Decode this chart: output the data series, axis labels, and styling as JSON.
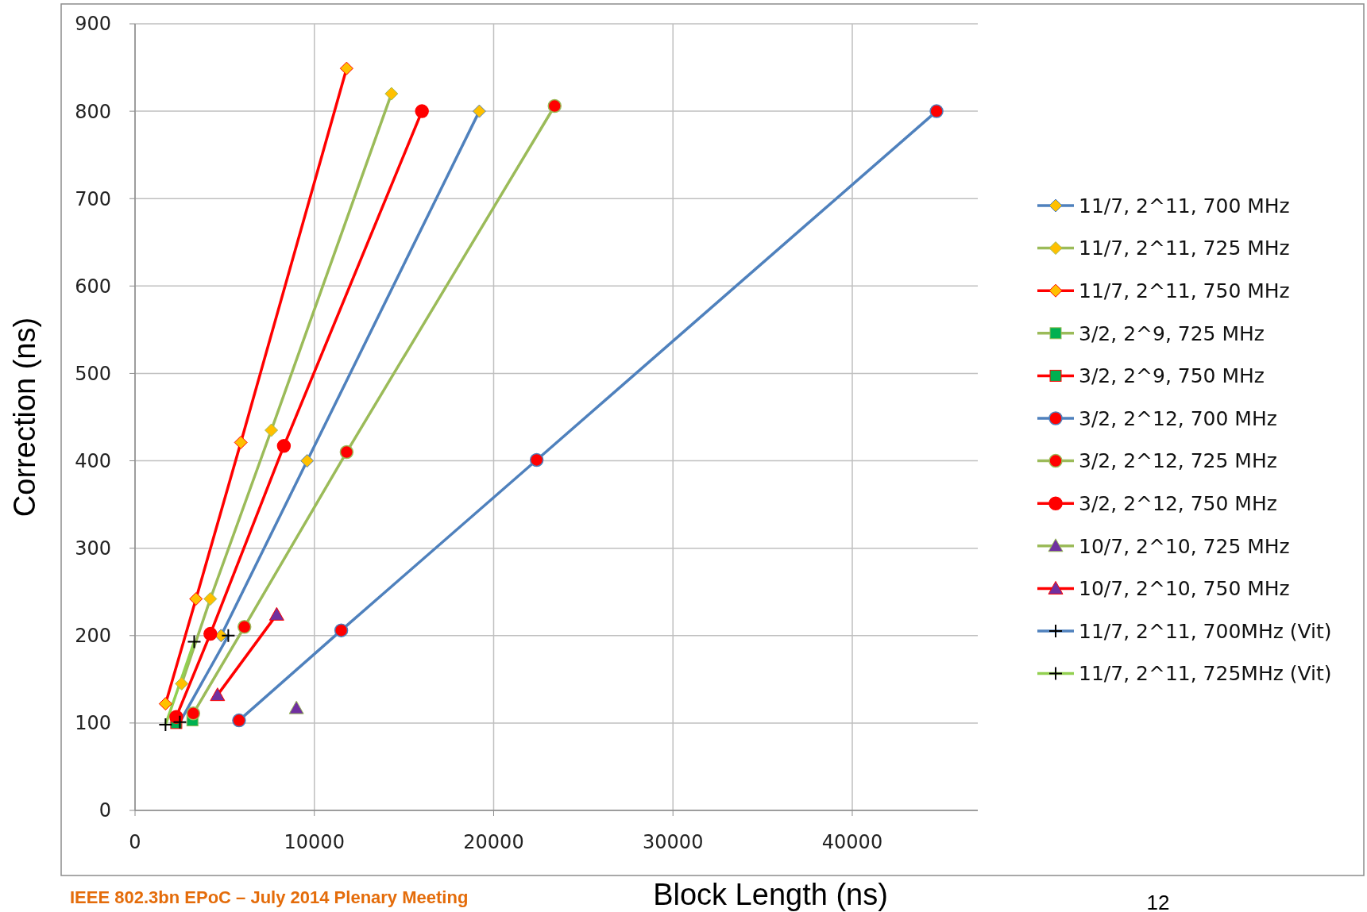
{
  "chart_data": {
    "type": "line",
    "xlabel": "Block Length (ns)",
    "ylabel": "Correction (ns)",
    "xlim": [
      0,
      47000
    ],
    "xticks": [
      0,
      10000,
      20000,
      30000,
      40000
    ],
    "ylim": [
      0,
      900
    ],
    "yticks": [
      0,
      100,
      200,
      300,
      400,
      500,
      600,
      700,
      800,
      900
    ],
    "grid": true,
    "legend": "right",
    "annotations": [
      "IEEE 802.3bn EPoC – July 2014 Plenary Meeting",
      "12"
    ],
    "series": [
      {
        "name": "11/7, 2^11, 700 MHz",
        "color": "#4f81bd",
        "marker": "diamond",
        "colors": [
          "#ffc000",
          "#ffc000",
          "#ffc000"
        ],
        "x": [
          4800,
          9600,
          19200
        ],
        "values": [
          200,
          400,
          800
        ]
      },
      {
        "name": "11/7, 2^11, 725 MHz",
        "color": "#9bbb59",
        "marker": "diamond",
        "colors": [
          "#ffc000",
          "#ffc000",
          "#ffc000",
          "#ffc000"
        ],
        "x": [
          2600,
          4200,
          7600,
          14300
        ],
        "values": [
          145,
          242,
          435,
          820
        ]
      },
      {
        "name": "11/7, 2^11, 750 MHz",
        "color": "#ff0000",
        "marker": "diamond",
        "colors": [
          "#ffc000",
          "#ffc000",
          "#ffc000",
          "#ffc000"
        ],
        "x": [
          1700,
          3400,
          5900,
          11800
        ],
        "values": [
          122,
          242,
          421,
          849
        ]
      },
      {
        "name": "3/2, 2^9, 725 MHz",
        "color": "#9bbb59",
        "marker": "square",
        "colors": [
          "#00b050"
        ],
        "x": [
          3200
        ],
        "values": [
          103
        ]
      },
      {
        "name": "3/2, 2^9, 750 MHz",
        "color": "#ff0000",
        "marker": "square",
        "colors": [
          "#00b050"
        ],
        "x": [
          2300
        ],
        "values": [
          100
        ]
      },
      {
        "name": "3/2, 2^12, 700 MHz",
        "color": "#4f81bd",
        "marker": "circle",
        "colors": [
          "#ff0000",
          "#ff0000",
          "#ff0000",
          "#ff0000"
        ],
        "x": [
          5800,
          11500,
          22400,
          44700
        ],
        "values": [
          103,
          206,
          401,
          800
        ]
      },
      {
        "name": "3/2, 2^12, 725 MHz",
        "color": "#9bbb59",
        "marker": "circle",
        "colors": [
          "#ff0000",
          "#ff0000",
          "#ff0000",
          "#ff0000"
        ],
        "x": [
          3250,
          6100,
          11800,
          23400
        ],
        "values": [
          111,
          210,
          410,
          806
        ]
      },
      {
        "name": "3/2, 2^12, 750 MHz",
        "color": "#ff0000",
        "marker": "circle",
        "colors": [
          "#ff0000",
          "#ff0000",
          "#ff0000",
          "#ff0000"
        ],
        "x": [
          2300,
          4200,
          8300,
          16000
        ],
        "values": [
          107,
          202,
          417,
          800
        ]
      },
      {
        "name": "10/7, 2^10, 725 MHz",
        "color": "#9bbb59",
        "marker": "triangle",
        "colors": [
          "#7030a0"
        ],
        "x": [
          9000
        ],
        "values": [
          117
        ]
      },
      {
        "name": "10/7, 2^10, 750 MHz",
        "color": "#ff0000",
        "marker": "triangle",
        "colors": [
          "#7030a0",
          "#7030a0"
        ],
        "x": [
          4600,
          7900
        ],
        "values": [
          132,
          224
        ]
      },
      {
        "name": "11/7, 2^11, 700MHz (Vit)",
        "color": "#4f81bd",
        "marker": "cross",
        "colors": [
          "#000000",
          "#000000"
        ],
        "x": [
          2500,
          5200
        ],
        "values": [
          101,
          200
        ]
      },
      {
        "name": "11/7, 2^11, 725MHz (Vit)",
        "color": "#92d050",
        "marker": "cross",
        "colors": [
          "#000000",
          "#000000"
        ],
        "x": [
          1700,
          3300
        ],
        "values": [
          98,
          193
        ]
      }
    ]
  }
}
